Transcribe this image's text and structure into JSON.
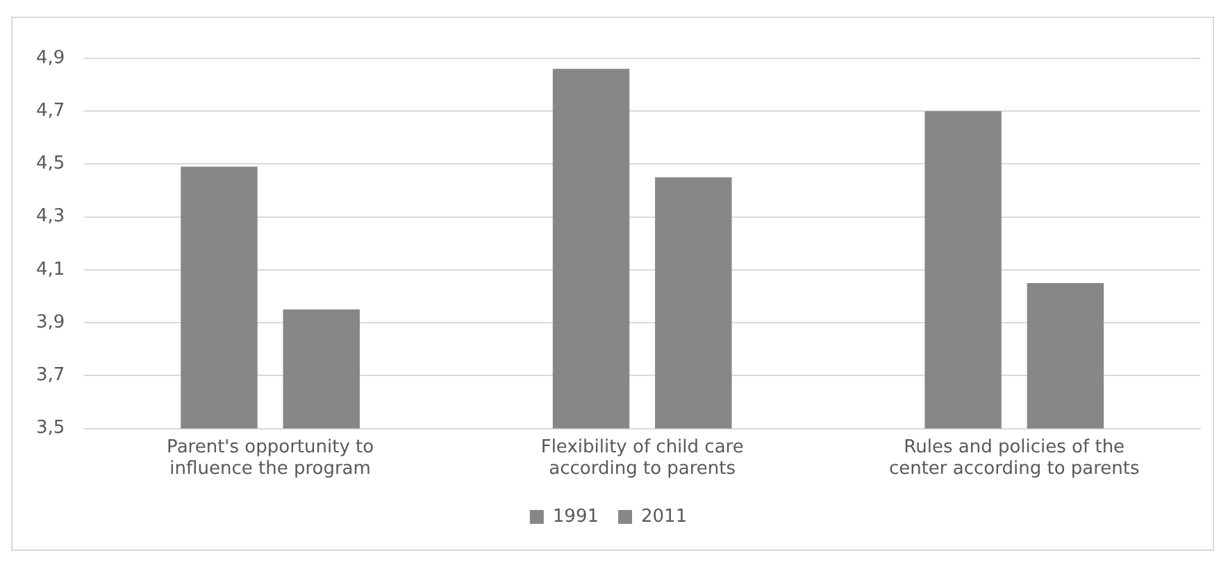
{
  "chart_data": {
    "type": "bar",
    "categories": [
      "Parent's opportunity to influence the program",
      "Flexibility of child care according to parents",
      "Rules and policies of the center according to parents"
    ],
    "series": [
      {
        "name": "1991",
        "color": "#878787",
        "values": [
          4.49,
          4.86,
          4.7
        ]
      },
      {
        "name": "2011",
        "color": "#878787",
        "values": [
          3.95,
          4.45,
          4.05
        ]
      }
    ],
    "ylim": [
      3.5,
      4.9
    ],
    "yticks": [
      {
        "value": 3.5,
        "label": "3,5"
      },
      {
        "value": 3.7,
        "label": "3,7"
      },
      {
        "value": 3.9,
        "label": "3,9"
      },
      {
        "value": 4.1,
        "label": "4,1"
      },
      {
        "value": 4.3,
        "label": "4,3"
      },
      {
        "value": 4.5,
        "label": "4,5"
      },
      {
        "value": 4.7,
        "label": "4,7"
      },
      {
        "value": 4.9,
        "label": "4,9"
      }
    ],
    "grid": "y",
    "legend": "bottom"
  }
}
